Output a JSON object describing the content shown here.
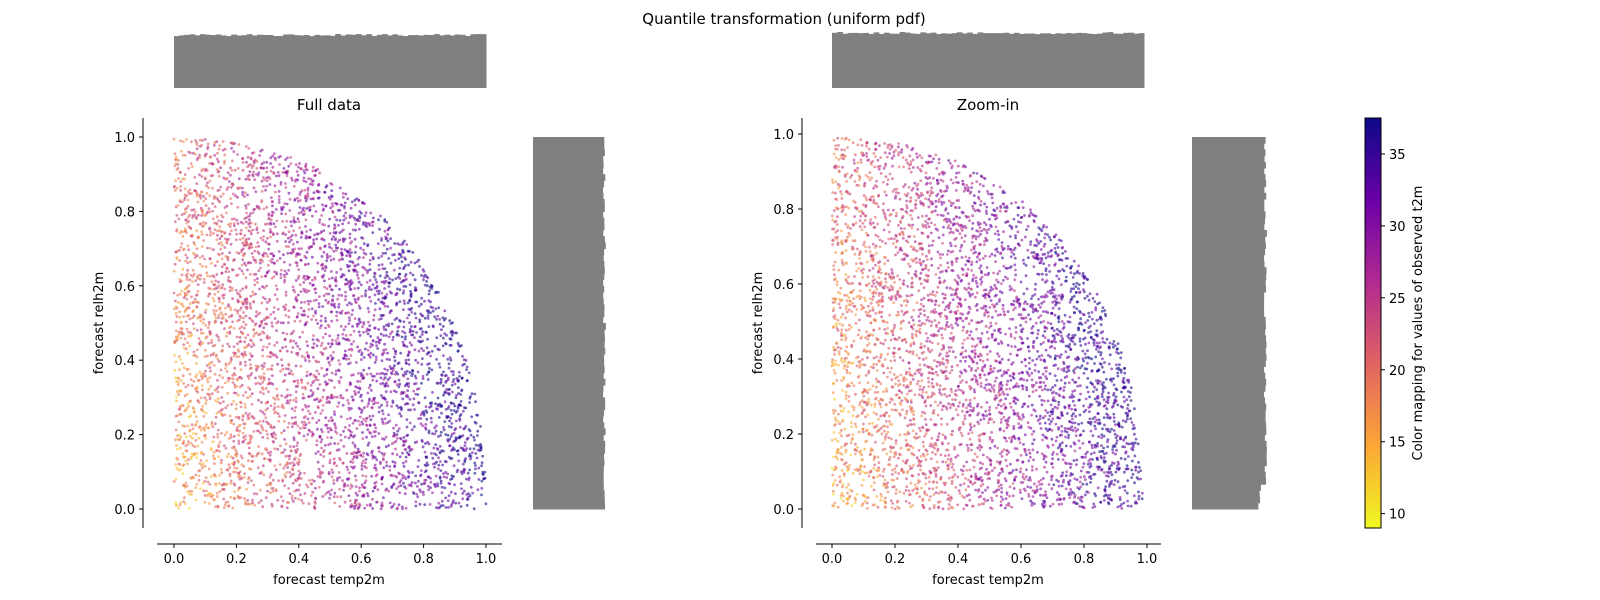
{
  "figure": {
    "title": "Quantile transformation (uniform pdf)"
  },
  "colors": {
    "histogram": "#808080",
    "axis": "#000000",
    "colormap": [
      "#0d0887",
      "#6a00a8",
      "#b12a90",
      "#e16462",
      "#fca636",
      "#f0f921"
    ]
  },
  "chart_data": [
    {
      "type": "scatter",
      "title": "Full data",
      "xlabel": "forecast temp2m",
      "ylabel": "forecast relh2m",
      "xlim": [
        -0.05,
        1.05
      ],
      "ylim": [
        -0.05,
        1.05
      ],
      "xticks": [
        "0.0",
        "0.2",
        "0.4",
        "0.6",
        "0.8",
        "1.0"
      ],
      "yticks": [
        "0.0",
        "0.2",
        "0.4",
        "0.6",
        "0.8",
        "1.0"
      ],
      "x_range": [
        0,
        1
      ],
      "y_range": [
        0,
        1
      ],
      "marginal_histograms": [
        "top",
        "right"
      ],
      "color_encoding": "observed t2m"
    },
    {
      "type": "scatter",
      "title": "Zoom-in",
      "xlabel": "forecast temp2m",
      "ylabel": "forecast relh2m",
      "xlim": [
        -0.05,
        1.05
      ],
      "ylim": [
        -0.05,
        1.05
      ],
      "xticks": [
        "0.0",
        "0.2",
        "0.4",
        "0.6",
        "0.8",
        "1.0"
      ],
      "yticks": [
        "0.0",
        "0.2",
        "0.4",
        "0.6",
        "0.8",
        "1.0"
      ],
      "x_range": [
        0,
        0.99
      ],
      "y_range": [
        0,
        0.99
      ],
      "marginal_histograms": [
        "top",
        "right"
      ],
      "color_encoding": "observed t2m"
    }
  ],
  "colorbar": {
    "label": "Color mapping for values of observed t2m",
    "range": [
      9,
      37.5
    ],
    "ticks": [
      "10",
      "15",
      "20",
      "25",
      "30",
      "35"
    ]
  }
}
